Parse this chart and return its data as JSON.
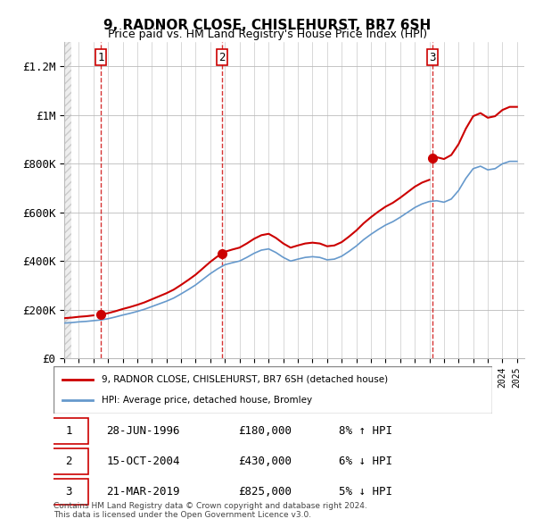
{
  "title": "9, RADNOR CLOSE, CHISLEHURST, BR7 6SH",
  "subtitle": "Price paid vs. HM Land Registry's House Price Index (HPI)",
  "ylabel_ticks": [
    "£0",
    "£200K",
    "£400K",
    "£600K",
    "£800K",
    "£1M",
    "£1.2M"
  ],
  "ytick_values": [
    0,
    200000,
    400000,
    600000,
    800000,
    1000000,
    1200000
  ],
  "ylim": [
    0,
    1300000
  ],
  "xlim_start": 1994.0,
  "xlim_end": 2025.5,
  "sale_dates": [
    1996.49,
    2004.79,
    2019.22
  ],
  "sale_prices": [
    180000,
    430000,
    825000
  ],
  "sale_labels": [
    "1",
    "2",
    "3"
  ],
  "sale_color": "#cc0000",
  "hpi_color": "#6699cc",
  "hpi_line_color": "#4477aa",
  "legend_entries": [
    "9, RADNOR CLOSE, CHISLEHURST, BR7 6SH (detached house)",
    "HPI: Average price, detached house, Bromley"
  ],
  "table_rows": [
    [
      "1",
      "28-JUN-1996",
      "£180,000",
      "8% ↑ HPI"
    ],
    [
      "2",
      "15-OCT-2004",
      "£430,000",
      "6% ↓ HPI"
    ],
    [
      "3",
      "21-MAR-2019",
      "£825,000",
      "5% ↓ HPI"
    ]
  ],
  "footnote": "Contains HM Land Registry data © Crown copyright and database right 2024.\nThis data is licensed under the Open Government Licence v3.0.",
  "background_hatch_color": "#d0d0d0",
  "grid_color": "#bbbbbb",
  "hpi_years": [
    1994,
    1994.5,
    1995,
    1995.5,
    1996,
    1996.5,
    1997,
    1997.5,
    1998,
    1998.5,
    1999,
    1999.5,
    2000,
    2000.5,
    2001,
    2001.5,
    2002,
    2002.5,
    2003,
    2003.5,
    2004,
    2004.5,
    2005,
    2005.5,
    2006,
    2006.5,
    2007,
    2007.5,
    2008,
    2008.5,
    2009,
    2009.5,
    2010,
    2010.5,
    2011,
    2011.5,
    2012,
    2012.5,
    2013,
    2013.5,
    2014,
    2014.5,
    2015,
    2015.5,
    2016,
    2016.5,
    2017,
    2017.5,
    2018,
    2018.5,
    2019,
    2019.5,
    2020,
    2020.5,
    2021,
    2021.5,
    2022,
    2022.5,
    2023,
    2023.5,
    2024,
    2024.5,
    2025
  ],
  "hpi_values": [
    145000,
    147000,
    150000,
    152000,
    155000,
    158000,
    163000,
    170000,
    178000,
    185000,
    193000,
    202000,
    213000,
    224000,
    235000,
    248000,
    265000,
    283000,
    302000,
    325000,
    348000,
    368000,
    385000,
    393000,
    400000,
    415000,
    432000,
    445000,
    450000,
    435000,
    415000,
    400000,
    408000,
    415000,
    418000,
    415000,
    405000,
    408000,
    420000,
    440000,
    462000,
    488000,
    510000,
    530000,
    548000,
    562000,
    580000,
    600000,
    620000,
    635000,
    645000,
    648000,
    642000,
    655000,
    690000,
    740000,
    780000,
    790000,
    775000,
    780000,
    800000,
    810000,
    810000
  ],
  "sale_hpi_line_x": [
    1994,
    1994.5,
    1995,
    1995.5,
    1996,
    1996.5,
    1997,
    1997.5,
    1998,
    1998.5,
    1999,
    1999.5,
    2000,
    2000.5,
    2001,
    2001.5,
    2002,
    2002.5,
    2003,
    2003.5,
    2004,
    2004.5,
    2005,
    2005.5,
    2006,
    2006.5,
    2007,
    2007.5,
    2008,
    2008.5,
    2009,
    2009.5,
    2010,
    2010.5,
    2011,
    2011.5,
    2012,
    2012.5,
    2013,
    2013.5,
    2014,
    2014.5,
    2015,
    2015.5,
    2016,
    2016.5,
    2017,
    2017.5,
    2018,
    2018.5,
    2019,
    2019.5,
    2020,
    2020.5,
    2021,
    2021.5,
    2022,
    2022.5,
    2023,
    2023.5,
    2024,
    2024.5,
    2025
  ],
  "price_line_x": [
    1996.49,
    2004.79,
    2019.22
  ],
  "price_line_y": [
    180000,
    430000,
    825000
  ]
}
